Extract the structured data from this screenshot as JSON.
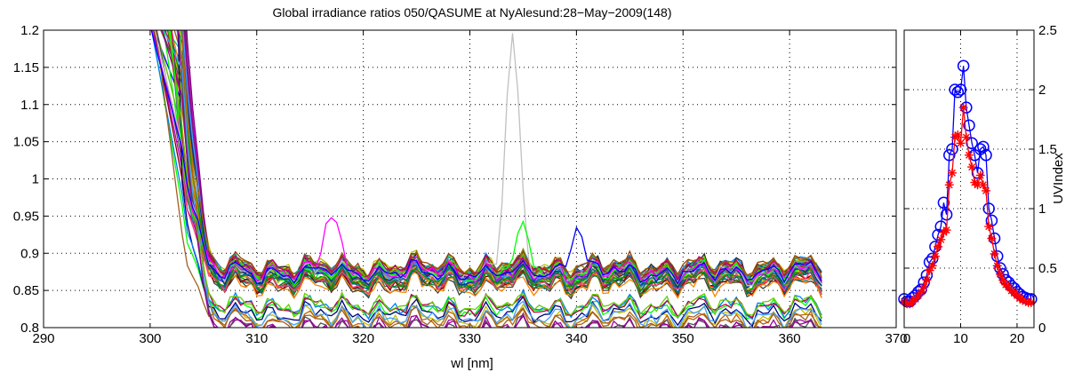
{
  "chart_data": [
    {
      "type": "line",
      "title": "Global irradiance ratios 050/QASUME at NyAlesund:28−May−2009(148)",
      "xlabel": "wl [nm]",
      "ylabel": "",
      "xlim": [
        290,
        370
      ],
      "ylim": [
        0.8,
        1.2
      ],
      "xticks": [
        "290",
        "300",
        "310",
        "320",
        "330",
        "340",
        "350",
        "360",
        "370"
      ],
      "yticks": [
        "0.8",
        "0.85",
        "0.9",
        "0.95",
        "1",
        "1.05",
        "1.1",
        "1.15",
        "1.2"
      ],
      "grid": true,
      "legend": "none",
      "series_group_upper": {
        "count": 40,
        "baseline_ratio_range": [
          0.855,
          0.885
        ],
        "wavelength_range": [
          303,
          363
        ],
        "note_values": "ratio ~0.87 from 306 to 363 nm, rising steeply below 305 nm"
      },
      "series_group_lower": {
        "count": 12,
        "baseline_ratio_range": [
          0.795,
          0.835
        ],
        "wavelength_range": [
          303,
          363
        ]
      },
      "highlighted_series": [
        {
          "color": "#c0c0c0",
          "peak_x": 334,
          "peak_y": 1.2
        },
        {
          "color": "#00ff00",
          "peak_x": 335,
          "peak_y": 0.93
        },
        {
          "color": "#ff00ff",
          "peak_x": 317,
          "peak_y": 0.96
        },
        {
          "color": "#0000ff",
          "peak_x": 340,
          "peak_y": 0.94
        }
      ]
    },
    {
      "type": "line",
      "title": "",
      "xlabel": "",
      "ylabel": "UVIndex",
      "xlim": [
        0,
        23
      ],
      "ylim": [
        0,
        2.5
      ],
      "xticks": [
        "0",
        "10",
        "20"
      ],
      "yticks": [
        "0",
        "0.5",
        "1",
        "1.5",
        "2",
        "2.5"
      ],
      "grid": true,
      "legend": "none",
      "series": [
        {
          "color": "#0000ff",
          "marker": "circle",
          "x": [
            0,
            0.5,
            1,
            1.5,
            2,
            2.5,
            3,
            3.5,
            4,
            4.5,
            5,
            5.5,
            6,
            6.5,
            7,
            7.5,
            8,
            8.5,
            9,
            9.5,
            10,
            10.5,
            11,
            11.5,
            12,
            12.5,
            13,
            13.5,
            14,
            14.5,
            15,
            15.5,
            16,
            16.5,
            17,
            17.5,
            18,
            18.5,
            19,
            19.5,
            20,
            20.5,
            21,
            21.5,
            22,
            22.5
          ],
          "y": [
            0.24,
            0.22,
            0.22,
            0.25,
            0.27,
            0.3,
            0.32,
            0.38,
            0.44,
            0.55,
            0.58,
            0.68,
            0.78,
            0.85,
            1.05,
            0.95,
            1.45,
            1.5,
            2.0,
            1.98,
            2.0,
            2.2,
            1.85,
            1.7,
            1.55,
            1.45,
            1.3,
            1.5,
            1.52,
            1.45,
            1.0,
            0.9,
            0.75,
            0.6,
            0.5,
            0.45,
            0.4,
            0.38,
            0.35,
            0.33,
            0.3,
            0.28,
            0.26,
            0.25,
            0.24,
            0.24
          ]
        },
        {
          "color": "#ff0000",
          "marker": "asterisk",
          "x": [
            0,
            0.5,
            1,
            1.5,
            2,
            2.5,
            3,
            3.5,
            4,
            4.5,
            5,
            5.5,
            6,
            6.5,
            7,
            7.5,
            8,
            8.5,
            9,
            9.5,
            10,
            10.5,
            11,
            11.5,
            12,
            12.5,
            13,
            13.5,
            14,
            14.5,
            15,
            15.5,
            16,
            16.5,
            17,
            17.5,
            18,
            18.5,
            19,
            19.5,
            20,
            20.5,
            21,
            21.5,
            22,
            22.5
          ],
          "y": [
            0.22,
            0.2,
            0.2,
            0.22,
            0.24,
            0.27,
            0.3,
            0.34,
            0.4,
            0.48,
            0.52,
            0.6,
            0.68,
            0.74,
            0.8,
            0.82,
            1.2,
            1.3,
            1.6,
            1.62,
            1.55,
            1.85,
            1.6,
            1.45,
            1.35,
            1.22,
            1.2,
            1.28,
            1.2,
            1.15,
            0.85,
            0.75,
            0.62,
            0.52,
            0.45,
            0.4,
            0.36,
            0.34,
            0.31,
            0.29,
            0.27,
            0.25,
            0.23,
            0.22,
            0.21,
            0.21
          ]
        }
      ]
    }
  ]
}
